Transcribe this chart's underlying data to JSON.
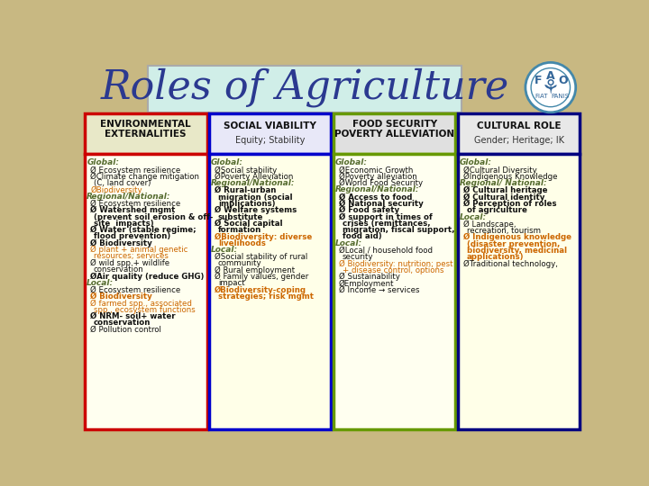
{
  "title": "Roles of Agriculture",
  "title_fontsize": 32,
  "title_color": "#2B3990",
  "title_bg": "#d0eee8",
  "bg_color": "#c8b882",
  "columns": [
    {
      "header": "ENVIRONMENTAL\nEXTERNALITIES",
      "subheader": "",
      "border_color": "#cc0000",
      "header_bg": "#e8e8c8",
      "content_bg": "#fffff0",
      "text": [
        {
          "t": "Global:",
          "style": "italic_bold_olive",
          "indent": 0
        },
        {
          "t": "Ø Ecosystem resilience",
          "style": "normal",
          "indent": 5
        },
        {
          "t": "ØClimate change mitigation\n(C, land cover)",
          "style": "normal",
          "indent": 5
        },
        {
          "t": "ØBiodiversity",
          "style": "orange",
          "indent": 5
        },
        {
          "t": "Regional/National:",
          "style": "italic_bold_olive",
          "indent": 0
        },
        {
          "t": "Ø Ecosystem resilience",
          "style": "normal",
          "indent": 5
        },
        {
          "t": "Ø Watershed mgmt\n(prevent soil erosion & off-\nsite  impacts)",
          "style": "bold_partial",
          "indent": 5
        },
        {
          "t": "Ø Water (stable regime;\nflood prevention)",
          "style": "bold_partial",
          "indent": 5
        },
        {
          "t": "Ø Biodiversity",
          "style": "bold",
          "indent": 5
        },
        {
          "t": "Ø plant + animal genetic\nresources; services",
          "style": "orange",
          "indent": 5
        },
        {
          "t": "Ø wild spp.+ wildlife\nconservation",
          "style": "normal",
          "indent": 5
        },
        {
          "t": "ØAir quality (reduce GHG)",
          "style": "bold_partial",
          "indent": 5
        },
        {
          "t": "Local:",
          "style": "italic_bold_olive",
          "indent": 0
        },
        {
          "t": "Ø Ecosystem resilience",
          "style": "normal",
          "indent": 5
        },
        {
          "t": "Ø Biodiversity",
          "style": "bold_orange",
          "indent": 5
        },
        {
          "t": "Ø farmed spp., associated\nspp., ecosystem functions",
          "style": "orange",
          "indent": 5
        },
        {
          "t": "Ø NRM- soil+ water\nconservation",
          "style": "bold",
          "indent": 5
        },
        {
          "t": "Ø Pollution control",
          "style": "normal",
          "indent": 5
        }
      ]
    },
    {
      "header": "SOCIAL VIABILITY",
      "subheader": "Equity; Stability",
      "border_color": "#0000cc",
      "header_bg": "#e8e8f8",
      "content_bg": "#ffffe8",
      "text": [
        {
          "t": "Global:",
          "style": "italic_bold_olive",
          "indent": 0
        },
        {
          "t": "ØSocial stability",
          "style": "normal",
          "indent": 5
        },
        {
          "t": "ØPoverty Alleviation",
          "style": "normal",
          "indent": 5
        },
        {
          "t": "Regional/National:",
          "style": "italic_bold_olive",
          "indent": 0
        },
        {
          "t": "Ø Rural-urban\nmigration (social\nimplications)",
          "style": "bold_partial2",
          "indent": 5
        },
        {
          "t": "Ø Welfare systems\nsubstitute",
          "style": "bold",
          "indent": 5
        },
        {
          "t": "Ø Social capital\nformation",
          "style": "bold",
          "indent": 5
        },
        {
          "t": "ØBiodiversity: diverse\nlivelihoods",
          "style": "orange_partial",
          "indent": 5
        },
        {
          "t": "Local:",
          "style": "italic_bold_olive",
          "indent": 0
        },
        {
          "t": "ØSocial stability of rural\ncommunity",
          "style": "normal",
          "indent": 5
        },
        {
          "t": "Ø Rural employment",
          "style": "normal",
          "indent": 5
        },
        {
          "t": "Ø Family values, gender\nimpact",
          "style": "normal",
          "indent": 5
        },
        {
          "t": "ØBiodiversity-coping\nstrategies; risk mgmt",
          "style": "orange_partial",
          "indent": 5
        }
      ]
    },
    {
      "header": "FOOD SECURITY\nPOVERTY ALLEVIATION",
      "subheader": "",
      "border_color": "#669900",
      "header_bg": "#e0e0e0",
      "content_bg": "#fffff0",
      "text": [
        {
          "t": "Global:",
          "style": "italic_bold_olive",
          "indent": 0
        },
        {
          "t": "ØEconomic Growth",
          "style": "normal",
          "indent": 5
        },
        {
          "t": "ØPoverty alleviation",
          "style": "normal",
          "indent": 5
        },
        {
          "t": "ØWorld Food Security",
          "style": "normal",
          "indent": 5
        },
        {
          "t": "Regional/National:",
          "style": "italic_bold_olive",
          "indent": 0
        },
        {
          "t": "Ø Access to food",
          "style": "bold",
          "indent": 5
        },
        {
          "t": "Ø National security",
          "style": "bold",
          "indent": 5
        },
        {
          "t": "Ø Food safety",
          "style": "bold",
          "indent": 5
        },
        {
          "t": "Ø support in times of\ncrises (remittances,\nmigration, fiscal support,\nfood aid)",
          "style": "bold",
          "indent": 5
        },
        {
          "t": "Local:",
          "style": "italic_bold_olive_ul",
          "indent": 0
        },
        {
          "t": "ØLocal / household food\nsecurity",
          "style": "normal",
          "indent": 5
        },
        {
          "t": "Ø Biodiversity: nutrition; pest\n+ disease control, options",
          "style": "orange",
          "indent": 5
        },
        {
          "t": "Ø Sustainability",
          "style": "normal",
          "indent": 5
        },
        {
          "t": "ØEmployment",
          "style": "normal",
          "indent": 5
        },
        {
          "t": "Ø Income → services",
          "style": "normal",
          "indent": 5
        }
      ]
    },
    {
      "header": "CULTURAL ROLE",
      "subheader": "Gender; Heritage; IK",
      "border_color": "#000080",
      "header_bg": "#e8e8e8",
      "content_bg": "#ffffe8",
      "text": [
        {
          "t": "Global:",
          "style": "italic_bold_olive",
          "indent": 0
        },
        {
          "t": "ØCultural Diversity",
          "style": "normal",
          "indent": 5
        },
        {
          "t": "ØIndigenous Knowledge",
          "style": "normal",
          "indent": 5
        },
        {
          "t": "Regional/ National:",
          "style": "italic_bold_olive",
          "indent": 0
        },
        {
          "t": "Ø Cultural heritage",
          "style": "bold",
          "indent": 5
        },
        {
          "t": "Ø Cultural identity",
          "style": "bold",
          "indent": 5
        },
        {
          "t": "Ø Perception of roles\nof agriculture",
          "style": "bold",
          "indent": 5
        },
        {
          "t": "Local:",
          "style": "italic_bold_olive_ul",
          "indent": 0
        },
        {
          "t": "Ø Landscape,\nrecreation, tourism",
          "style": "normal",
          "indent": 5
        },
        {
          "t": "Ø Indigenous knowledge\n(disaster prevention,\nbiodiversity, medicinal\napplications)",
          "style": "orange_partial2",
          "indent": 5
        },
        {
          "t": "ØTraditional technology,",
          "style": "normal",
          "indent": 5
        }
      ]
    }
  ]
}
